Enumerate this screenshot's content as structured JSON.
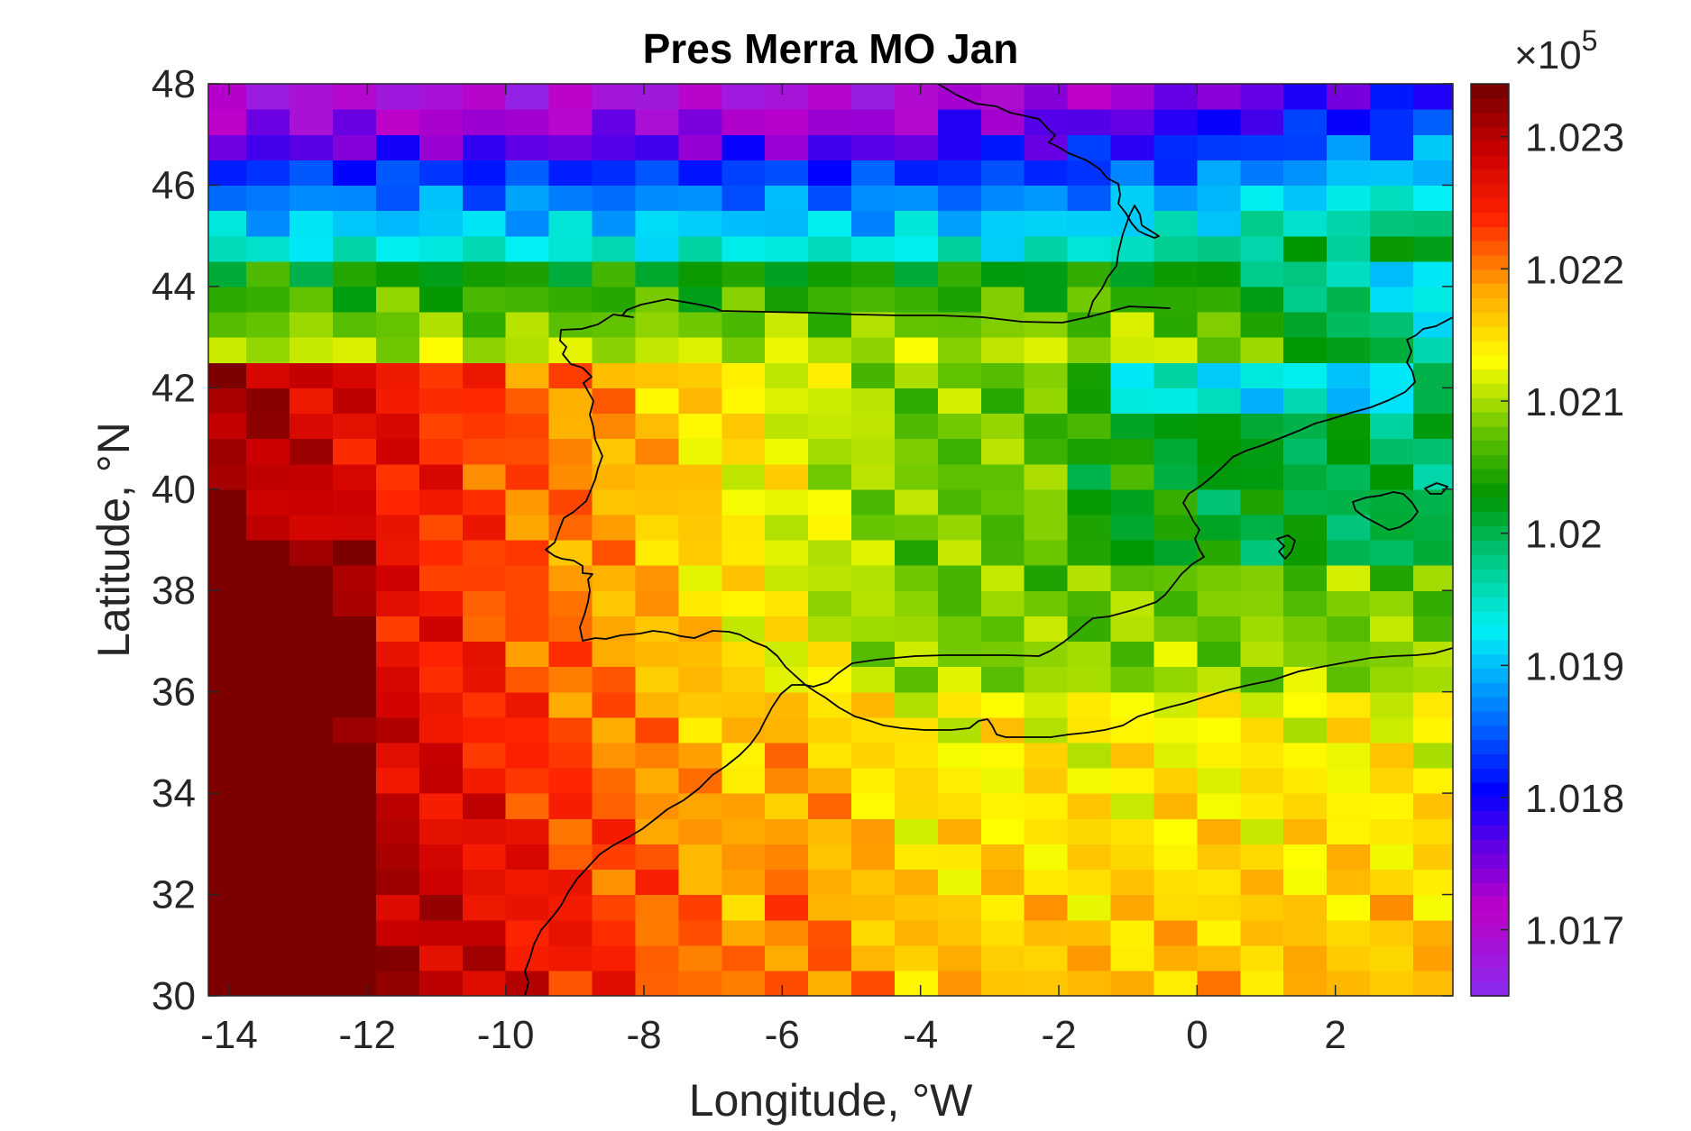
{
  "chart_data": {
    "type": "heatmap",
    "title": "Pres Merra MO Jan",
    "xlabel": "Longitude, °W",
    "ylabel": "Latitude, °N",
    "xlim": [
      -14.3,
      3.7
    ],
    "ylim": [
      30,
      48
    ],
    "x_ticks": [
      -14,
      -12,
      -10,
      -8,
      -6,
      -4,
      -2,
      0,
      2
    ],
    "x_tick_labels": [
      "-14",
      "-12",
      "-10",
      "-8",
      "-6",
      "-4",
      "-2",
      "0",
      "2"
    ],
    "y_ticks": [
      30,
      32,
      34,
      36,
      38,
      40,
      42,
      44,
      46,
      48
    ],
    "y_tick_labels": [
      "30",
      "32",
      "34",
      "36",
      "38",
      "40",
      "42",
      "44",
      "46",
      "48"
    ],
    "colorbar": {
      "multiplier_base": "×10",
      "multiplier_exp": "5",
      "clim": [
        1.0165,
        1.0234
      ],
      "ticks": [
        1.017,
        1.018,
        1.019,
        1.02,
        1.021,
        1.022,
        1.023
      ],
      "tick_labels": [
        "1.017",
        "1.018",
        "1.019",
        "1.02",
        "1.021",
        "1.022",
        "1.023"
      ],
      "colormap": "jet-like (purple–blue–cyan–green–yellow–orange–red–dark red)"
    },
    "grid": false,
    "cell_size_deg": [
      0.625,
      0.5
    ],
    "values_unit": "Pa ×10^5 (colorbar scale)",
    "overlay": "coastlines of Iberian Peninsula, North Africa, France and Balearic Islands"
  }
}
